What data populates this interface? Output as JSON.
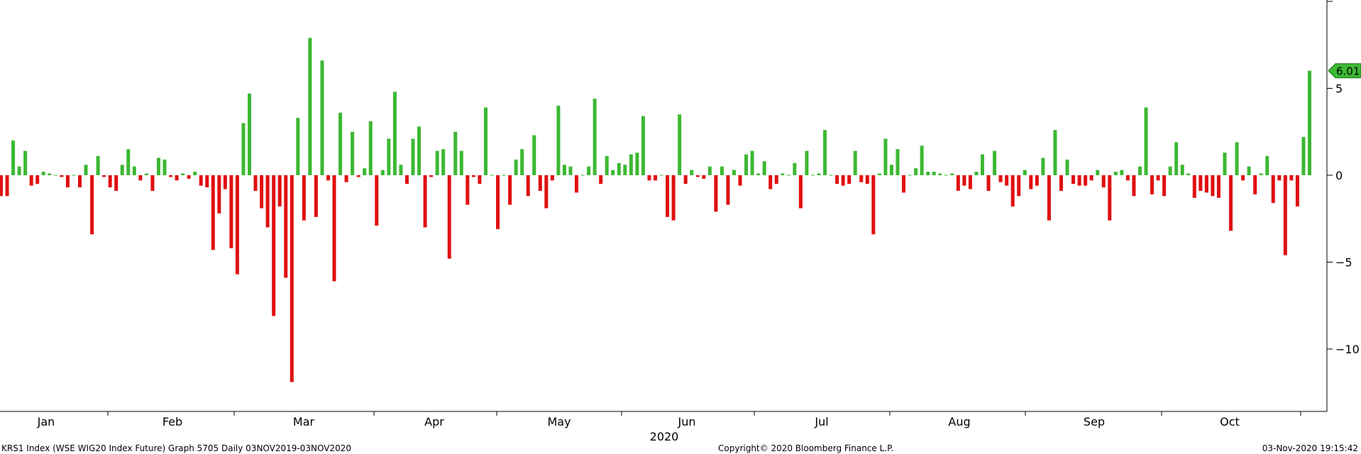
{
  "chart_data": {
    "type": "bar",
    "footer": {
      "left": "KRS1 Index (WSE WIG20 Index Future) Graph 5705  Daily 03NOV2019-03NOV2020",
      "center": "Copyright© 2020 Bloomberg Finance L.P.",
      "right": "03-Nov-2020 19:15:42"
    },
    "x_year_label": "2020",
    "month_labels": [
      "Jan",
      "Feb",
      "Mar",
      "Apr",
      "May",
      "Jun",
      "Jul",
      "Aug",
      "Sep",
      "Oct"
    ],
    "y_ticks": [
      5,
      0,
      -5,
      -10
    ],
    "ylim": [
      -13.5,
      10
    ],
    "last_value_label": "6.01",
    "colors": {
      "positive": "#3cb832",
      "negative": "#e01010",
      "last_badge": "#3cb832"
    },
    "values": [
      -1.2,
      -1.2,
      2.0,
      0.5,
      1.4,
      -0.6,
      -0.5,
      0.2,
      0.1,
      0.0,
      -0.1,
      -0.7,
      0.0,
      -0.7,
      0.6,
      -3.4,
      1.1,
      -0.1,
      -0.7,
      -0.9,
      0.6,
      1.5,
      0.5,
      -0.3,
      0.1,
      -0.9,
      1.0,
      0.9,
      -0.1,
      -0.3,
      0.1,
      -0.2,
      0.2,
      -0.6,
      -0.7,
      -4.3,
      -2.2,
      -0.8,
      -4.2,
      -5.7,
      3.0,
      4.7,
      -0.9,
      -1.9,
      -3.0,
      -8.1,
      -1.8,
      -5.9,
      -11.9,
      3.3,
      -2.6,
      7.9,
      -2.4,
      6.6,
      -0.3,
      -6.1,
      3.6,
      -0.4,
      2.5,
      -0.1,
      0.4,
      3.1,
      -2.9,
      0.3,
      2.1,
      4.8,
      0.6,
      -0.5,
      2.1,
      2.8,
      -3.0,
      -0.1,
      1.4,
      1.5,
      -4.8,
      2.5,
      1.4,
      -1.7,
      -0.1,
      -0.5,
      3.9,
      0.0,
      -3.1,
      0.0,
      -1.7,
      0.9,
      1.5,
      -1.2,
      2.3,
      -0.9,
      -1.9,
      -0.3,
      4.0,
      0.6,
      0.5,
      -1.0,
      0.0,
      0.5,
      4.4,
      -0.5,
      1.1,
      0.3,
      0.7,
      0.6,
      1.2,
      1.3,
      3.4,
      -0.3,
      -0.3,
      0.0,
      -2.4,
      -2.6,
      3.5,
      -0.5,
      0.3,
      -0.1,
      -0.2,
      0.5,
      -2.1,
      0.5,
      -1.7,
      0.3,
      -0.6,
      1.2,
      1.4,
      0.1,
      0.8,
      -0.8,
      -0.5,
      0.1,
      0.0,
      0.7,
      -1.9,
      1.4,
      0.0,
      0.1,
      2.6,
      0.0,
      -0.5,
      -0.6,
      -0.5,
      1.4,
      -0.4,
      -0.5,
      -3.4,
      0.1,
      2.1,
      0.6,
      1.5,
      -1.0,
      0.0,
      0.4,
      1.7,
      0.2,
      0.2,
      0.1,
      0.0,
      0.1,
      -0.9,
      -0.6,
      -0.8,
      0.2,
      1.2,
      -0.9,
      1.4,
      -0.4,
      -0.6,
      -1.8,
      -1.2,
      0.3,
      -0.8,
      -0.6,
      1.0,
      -2.6,
      2.6,
      -0.9,
      0.9,
      -0.5,
      -0.6,
      -0.6,
      -0.3,
      0.3,
      -0.7,
      -2.6,
      0.2,
      0.3,
      -0.3,
      -1.2,
      0.5,
      3.9,
      -1.1,
      -0.3,
      -1.2,
      0.5,
      1.9,
      0.6,
      0.1,
      -1.3,
      -0.9,
      -1.0,
      -1.2,
      -1.3,
      1.3,
      -3.2,
      1.9,
      -0.3,
      0.5,
      -1.1,
      0.1,
      1.1,
      -1.6,
      -0.3,
      -4.6,
      -0.3,
      -1.8,
      2.2,
      6.01
    ]
  }
}
